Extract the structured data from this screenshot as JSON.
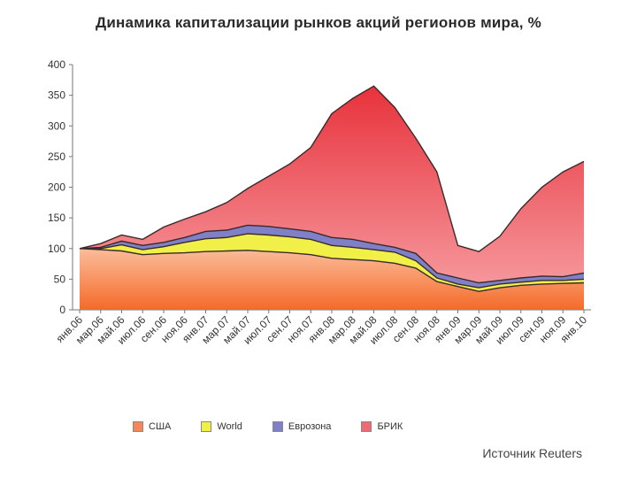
{
  "chart_data": {
    "type": "area",
    "title": "Динамика капитализации рынков акций регионов мира, %",
    "ylim": [
      0,
      400
    ],
    "yticks": [
      0,
      50,
      100,
      150,
      200,
      250,
      300,
      350,
      400
    ],
    "x_tick_labels": [
      "янв.06",
      "мар.06",
      "май.06",
      "июл.06",
      "сен.06",
      "ноя.06",
      "янв.07",
      "мар.07",
      "май.07",
      "июл.07",
      "сен.07",
      "ноя.07",
      "янв.08",
      "мар.08",
      "май.08",
      "июл.08",
      "сен.08",
      "ноя.08",
      "янв.09",
      "мар.09",
      "май.09",
      "июл.09",
      "сен.09",
      "ноя.09",
      "янв.10"
    ],
    "series": [
      {
        "name": "БРИК",
        "color": "#ee6b72",
        "values": [
          100,
          108,
          122,
          115,
          135,
          148,
          160,
          175,
          198,
          218,
          238,
          265,
          320,
          345,
          365,
          330,
          280,
          225,
          105,
          95,
          120,
          165,
          200,
          225,
          242
        ]
      },
      {
        "name": "Еврозона",
        "color": "#8080c8",
        "values": [
          100,
          102,
          112,
          105,
          110,
          118,
          128,
          130,
          138,
          136,
          132,
          128,
          118,
          115,
          108,
          102,
          92,
          60,
          52,
          44,
          48,
          52,
          55,
          54,
          60
        ]
      },
      {
        "name": "World",
        "color": "#f0f048",
        "values": [
          100,
          100,
          106,
          98,
          103,
          110,
          116,
          118,
          124,
          122,
          119,
          115,
          105,
          102,
          98,
          94,
          80,
          52,
          42,
          36,
          42,
          45,
          48,
          48,
          50
        ]
      },
      {
        "name": "США",
        "color": "#f4875a",
        "values": [
          100,
          98,
          96,
          90,
          92,
          93,
          95,
          96,
          97,
          95,
          93,
          90,
          84,
          82,
          80,
          76,
          68,
          46,
          38,
          30,
          36,
          40,
          42,
          43,
          44
        ]
      }
    ],
    "legend_order": [
      "США",
      "World",
      "Еврозона",
      "БРИК"
    ],
    "legend_position": "bottom",
    "grid": false,
    "source": "Источник Reuters"
  }
}
